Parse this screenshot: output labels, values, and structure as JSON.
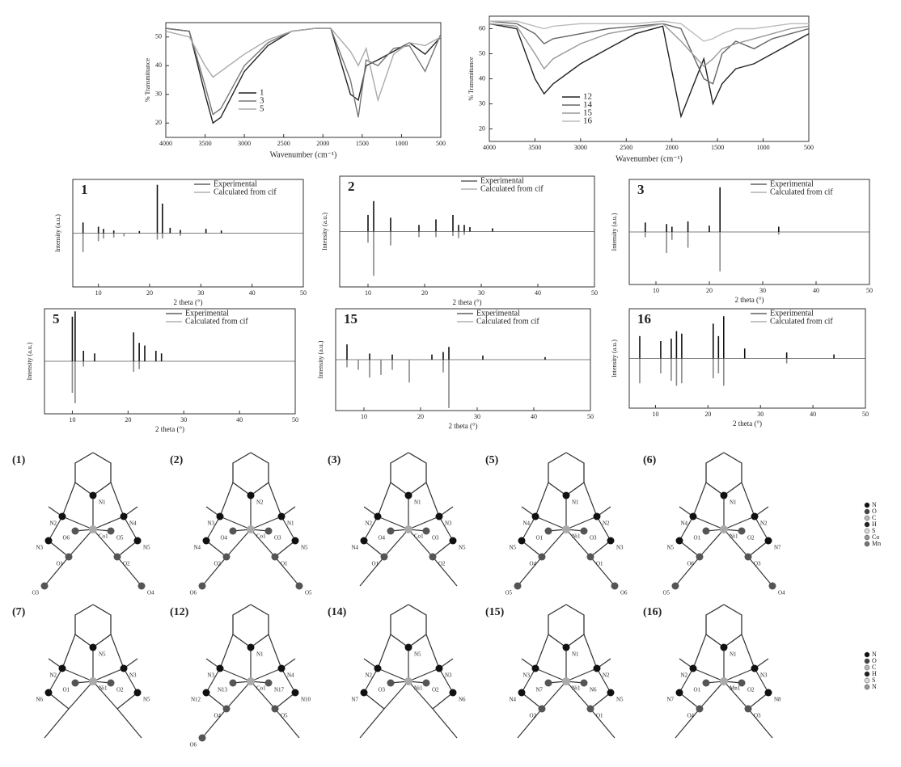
{
  "chart_data": [
    {
      "type": "line",
      "x_label": "Wavenumber (cm⁻¹)",
      "y_label": "% Transmittance",
      "x": [
        4000,
        3700,
        3500,
        3400,
        3300,
        3000,
        2700,
        2400,
        2100,
        1900,
        1650,
        1550,
        1450,
        1300,
        1100,
        900,
        700,
        500
      ],
      "xlim": [
        4000,
        500
      ],
      "xticks": [
        4000,
        3500,
        3000,
        2500,
        2000,
        1500,
        1000,
        500
      ],
      "ylim": [
        15,
        55
      ],
      "yticks": [
        20,
        30,
        40,
        50
      ],
      "series": [
        {
          "name": "1",
          "color": "#222222",
          "values": [
            53,
            52,
            30,
            20,
            22,
            38,
            47,
            52,
            53,
            53,
            30,
            28,
            40,
            42,
            45,
            48,
            44,
            50
          ]
        },
        {
          "name": "3",
          "color": "#777777",
          "values": [
            53,
            52,
            33,
            23,
            25,
            40,
            48,
            52,
            53,
            53,
            35,
            22,
            42,
            40,
            46,
            47,
            38,
            51
          ]
        },
        {
          "name": "5",
          "color": "#aaaaaa",
          "values": [
            52,
            50,
            40,
            36,
            38,
            44,
            49,
            52,
            53,
            53,
            45,
            40,
            46,
            28,
            44,
            48,
            47,
            50
          ]
        }
      ]
    },
    {
      "type": "line",
      "x_label": "Wavenumber (cm⁻¹)",
      "y_label": "% Transmittance",
      "x": [
        4000,
        3700,
        3500,
        3400,
        3300,
        3000,
        2700,
        2400,
        2100,
        1900,
        1650,
        1550,
        1450,
        1300,
        1100,
        900,
        700,
        500
      ],
      "xlim": [
        4000,
        500
      ],
      "xticks": [
        4000,
        3500,
        3000,
        2500,
        2000,
        1500,
        1000,
        500
      ],
      "ylim": [
        15,
        65
      ],
      "yticks": [
        20,
        30,
        40,
        50,
        60
      ],
      "series": [
        {
          "name": "12",
          "color": "#222222",
          "values": [
            62,
            60,
            40,
            34,
            38,
            46,
            52,
            58,
            61,
            25,
            48,
            30,
            38,
            44,
            46,
            50,
            54,
            58
          ]
        },
        {
          "name": "14",
          "color": "#666666",
          "values": [
            63,
            62,
            58,
            54,
            56,
            58,
            60,
            61,
            62,
            60,
            40,
            38,
            50,
            55,
            52,
            56,
            58,
            60
          ]
        },
        {
          "name": "15",
          "color": "#999999",
          "values": [
            62,
            61,
            50,
            44,
            48,
            54,
            58,
            60,
            62,
            55,
            45,
            48,
            52,
            54,
            56,
            58,
            60,
            61
          ]
        },
        {
          "name": "16",
          "color": "#bbbbbb",
          "values": [
            63,
            63,
            61,
            60,
            61,
            62,
            62,
            62,
            63,
            62,
            55,
            56,
            58,
            60,
            60,
            61,
            62,
            62
          ]
        }
      ]
    },
    {
      "type": "stem",
      "title": "1",
      "x_label": "2 theta (°)",
      "y_label": "Intensity (a.u.)",
      "xlim": [
        5,
        50
      ],
      "xticks": [
        10,
        20,
        30,
        40,
        50
      ],
      "ylim": [
        -100,
        100
      ],
      "series": [
        {
          "name": "Experimental",
          "color": "#111111",
          "x": [
            7,
            10,
            11,
            13,
            18,
            21.5,
            22.5,
            24,
            26,
            31,
            34
          ],
          "values": [
            20,
            12,
            8,
            5,
            4,
            90,
            55,
            10,
            6,
            8,
            5
          ]
        },
        {
          "name": "Calculated from cif",
          "color": "#888888",
          "x": [
            7,
            10,
            11,
            13,
            15,
            21.5,
            22.5,
            26
          ],
          "values": [
            -35,
            -15,
            -10,
            -8,
            -6,
            -12,
            -10,
            -5
          ]
        }
      ]
    },
    {
      "type": "stem",
      "title": "2",
      "x_label": "2 theta (°)",
      "y_label": "Intensity (a.u.)",
      "xlim": [
        5,
        50
      ],
      "xticks": [
        10,
        20,
        30,
        40,
        50
      ],
      "ylim": [
        -100,
        100
      ],
      "series": [
        {
          "name": "Experimental",
          "color": "#111111",
          "x": [
            10,
            11,
            14,
            19,
            22,
            25,
            26,
            27,
            28,
            32
          ],
          "values": [
            30,
            55,
            25,
            12,
            22,
            30,
            12,
            12,
            8,
            6
          ]
        },
        {
          "name": "Calculated from cif",
          "color": "#888888",
          "x": [
            10,
            11,
            14,
            19,
            22,
            25,
            26,
            27
          ],
          "values": [
            -20,
            -80,
            -25,
            -10,
            -10,
            -8,
            -12,
            -6
          ]
        }
      ]
    },
    {
      "type": "stem",
      "title": "3",
      "x_label": "2 theta (°)",
      "y_label": "Intensity (a.u.)",
      "xlim": [
        5,
        50
      ],
      "xticks": [
        10,
        20,
        30,
        40,
        50
      ],
      "ylim": [
        -100,
        100
      ],
      "series": [
        {
          "name": "Experimental",
          "color": "#111111",
          "x": [
            8,
            12,
            13,
            16,
            20,
            22,
            33
          ],
          "values": [
            18,
            15,
            10,
            20,
            12,
            85,
            10
          ]
        },
        {
          "name": "Calculated from cif",
          "color": "#888888",
          "x": [
            8,
            12,
            13,
            16,
            22,
            33
          ],
          "values": [
            -10,
            -40,
            -15,
            -30,
            -75,
            -5
          ]
        }
      ]
    },
    {
      "type": "stem",
      "title": "5",
      "x_label": "2 theta (°)",
      "y_label": "Intensity (a.u.)",
      "xlim": [
        5,
        50
      ],
      "xticks": [
        10,
        20,
        30,
        40,
        50
      ],
      "ylim": [
        -100,
        100
      ],
      "series": [
        {
          "name": "Experimental",
          "color": "#111111",
          "x": [
            10,
            10.5,
            12,
            14,
            21,
            22,
            23,
            25,
            26
          ],
          "values": [
            85,
            95,
            20,
            15,
            55,
            35,
            30,
            20,
            15
          ]
        },
        {
          "name": "Calculated from cif",
          "color": "#888888",
          "x": [
            10,
            10.5,
            12,
            21,
            22
          ],
          "values": [
            -60,
            -80,
            -10,
            -20,
            -15
          ]
        }
      ]
    },
    {
      "type": "stem",
      "title": "15",
      "x_label": "2 theta (°)",
      "y_label": "Intensity (a.u.)",
      "xlim": [
        5,
        50
      ],
      "xticks": [
        10,
        20,
        30,
        40,
        50
      ],
      "ylim": [
        -100,
        100
      ],
      "series": [
        {
          "name": "Experimental",
          "color": "#111111",
          "x": [
            7,
            11,
            15,
            22,
            24,
            25,
            31,
            42
          ],
          "values": [
            30,
            12,
            10,
            10,
            15,
            25,
            8,
            5
          ]
        },
        {
          "name": "Calculated from cif",
          "color": "#888888",
          "x": [
            7,
            9,
            11,
            13,
            15,
            18,
            24,
            25
          ],
          "values": [
            -15,
            -20,
            -35,
            -30,
            -20,
            -45,
            -25,
            -95
          ]
        }
      ]
    },
    {
      "type": "stem",
      "title": "16",
      "x_label": "2 theta (°)",
      "y_label": "Intensity (a.u.)",
      "xlim": [
        5,
        50
      ],
      "xticks": [
        10,
        20,
        30,
        40,
        50
      ],
      "ylim": [
        -100,
        100
      ],
      "series": [
        {
          "name": "Experimental",
          "color": "#111111",
          "x": [
            7,
            11,
            13,
            14,
            15,
            21,
            22,
            23,
            27,
            35,
            44
          ],
          "values": [
            45,
            35,
            40,
            55,
            50,
            70,
            45,
            85,
            20,
            12,
            8
          ]
        },
        {
          "name": "Calculated from cif",
          "color": "#888888",
          "x": [
            7,
            11,
            13,
            14,
            15,
            21,
            22,
            23,
            35
          ],
          "values": [
            -50,
            -30,
            -45,
            -55,
            -50,
            -40,
            -30,
            -55,
            -10
          ]
        }
      ]
    }
  ],
  "structures": [
    {
      "label": "(1)",
      "atoms": [
        "Co1",
        "N1",
        "N2",
        "N4",
        "N3",
        "N5",
        "O6",
        "O5",
        "O1",
        "O2",
        "O3",
        "O4"
      ]
    },
    {
      "label": "(2)",
      "atoms": [
        "Co1",
        "N2",
        "N3",
        "N1",
        "N4",
        "N5",
        "O4",
        "O3",
        "O2",
        "O1",
        "O6",
        "O5"
      ]
    },
    {
      "label": "(3)",
      "atoms": [
        "Co1",
        "N1",
        "N2",
        "N3",
        "N4",
        "N5",
        "O4",
        "O3",
        "O1",
        "O2"
      ]
    },
    {
      "label": "(5)",
      "atoms": [
        "Ni1",
        "N1",
        "N4",
        "N2",
        "N5",
        "N3",
        "O1",
        "O3",
        "O4",
        "O1",
        "O5",
        "O6"
      ]
    },
    {
      "label": "(6)",
      "atoms": [
        "Ni1",
        "N1",
        "N4",
        "N2",
        "N5",
        "N7",
        "O1",
        "O2",
        "O6",
        "O3",
        "O5",
        "O4"
      ]
    },
    {
      "label": "(7)",
      "atoms": [
        "Ni1",
        "N5",
        "N2",
        "N3",
        "N6",
        "N5",
        "O1",
        "O2"
      ]
    },
    {
      "label": "(12)",
      "atoms": [
        "Co1",
        "N1",
        "N3",
        "N4",
        "N12",
        "N10",
        "N13",
        "N17",
        "O4",
        "O5",
        "O6"
      ]
    },
    {
      "label": "(14)",
      "atoms": [
        "Ni1",
        "N5",
        "N2",
        "N3",
        "N7",
        "N6",
        "O3",
        "O2"
      ]
    },
    {
      "label": "(15)",
      "atoms": [
        "Ni1",
        "N1",
        "N3",
        "N2",
        "N4",
        "N5",
        "N7",
        "N6",
        "O2",
        "O1"
      ]
    },
    {
      "label": "(16)",
      "atoms": [
        "Mn1",
        "N1",
        "N2",
        "N3",
        "N7",
        "N8",
        "O1",
        "O2",
        "O4",
        "O3"
      ]
    }
  ],
  "element_legends": [
    [
      "N",
      "O",
      "C",
      "H",
      "S",
      "Co",
      "Mn"
    ],
    [
      "N",
      "O",
      "C",
      "H",
      "S",
      "N"
    ]
  ]
}
